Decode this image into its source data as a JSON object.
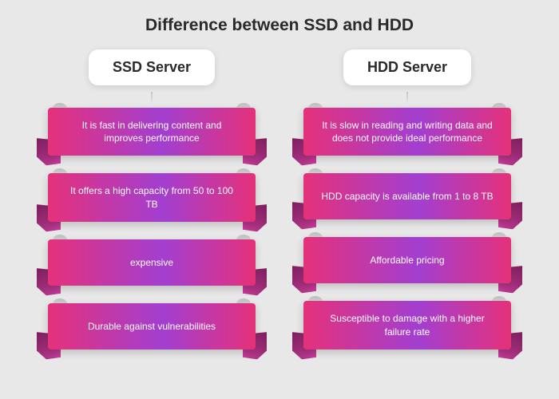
{
  "title": "Difference between SSD and HDD",
  "background_color": "#e8e8e8",
  "header_box": {
    "bg": "#ffffff",
    "text_color": "#2a2a2a",
    "font_size": 18,
    "border_radius": 12
  },
  "ribbon_style": {
    "text_color": "#ffffff",
    "font_size": 12,
    "gradient_from": "#e5317a",
    "gradient_to": "#a23fd0",
    "tail_dark": "#7a1e5c",
    "tail_light": "#c93d9a",
    "min_height": 58,
    "gap": 22
  },
  "columns": [
    {
      "header": "SSD Server",
      "items": [
        "It is fast in delivering content and improves performance",
        "It offers a high capacity from 50 to 100 TB",
        "expensive",
        "Durable against vulnerabilities"
      ]
    },
    {
      "header": "HDD Server",
      "items": [
        "It is slow in reading and writing data and does not provide ideal performance",
        "HDD capacity is available from 1 to 8 TB",
        "Affordable pricing",
        "Susceptible to damage with a higher failure rate"
      ]
    }
  ]
}
